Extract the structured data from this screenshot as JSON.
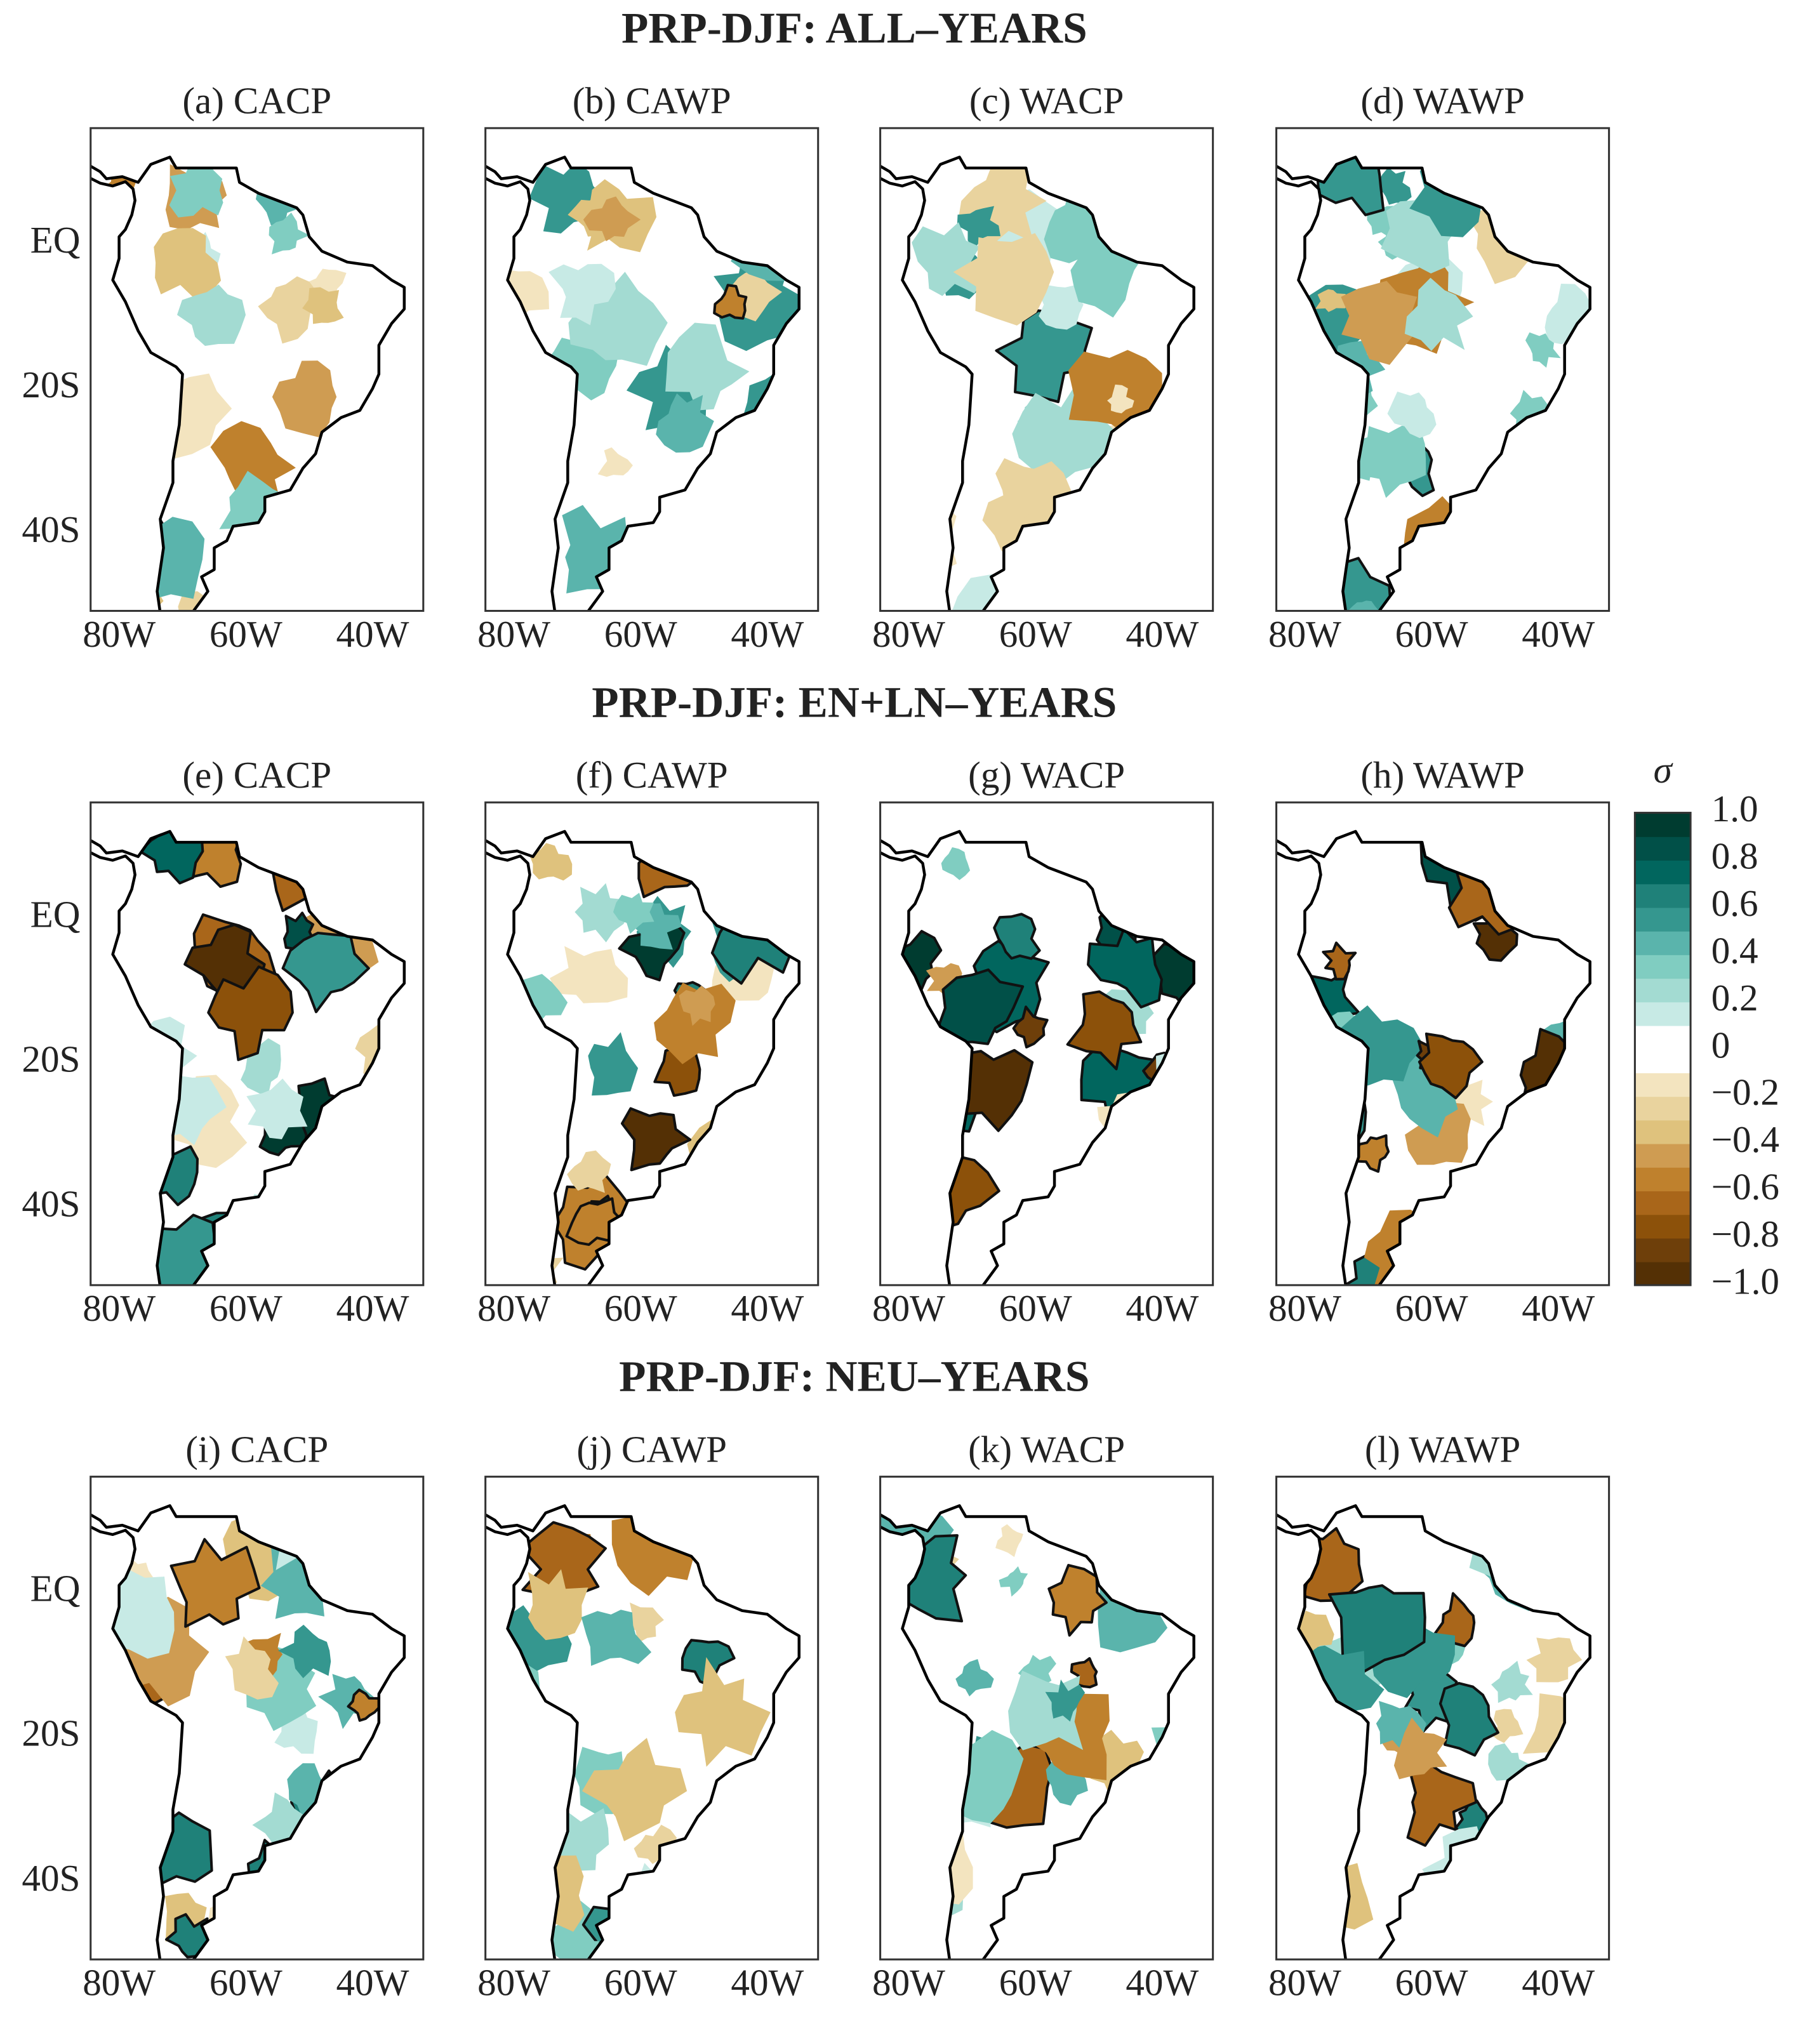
{
  "figure": {
    "rows": [
      {
        "title": "PRP-DJF: ALL–YEARS",
        "panels": [
          {
            "title": "(a) CACP"
          },
          {
            "title": "(b) CAWP"
          },
          {
            "title": "(c) WACP"
          },
          {
            "title": "(d) WAWP"
          }
        ]
      },
      {
        "title": "PRP-DJF: EN+LN–YEARS",
        "panels": [
          {
            "title": "(e) CACP"
          },
          {
            "title": "(f) CAWP"
          },
          {
            "title": "(g) WACP"
          },
          {
            "title": "(h) WAWP"
          }
        ]
      },
      {
        "title": "PRP-DJF: NEU–YEARS",
        "panels": [
          {
            "title": "(i) CACP"
          },
          {
            "title": "(j) CAWP"
          },
          {
            "title": "(k) WACP"
          },
          {
            "title": "(l) WAWP"
          }
        ]
      }
    ],
    "xlim": [
      -84.5,
      -32
    ],
    "ylim": [
      -50.7,
      16
    ],
    "xticks": [
      {
        "value": -80,
        "label": "80W"
      },
      {
        "value": -60,
        "label": "60W"
      },
      {
        "value": -40,
        "label": "40W"
      }
    ],
    "yticks": [
      {
        "value": 0,
        "label": "EQ"
      },
      {
        "value": -20,
        "label": "20S"
      },
      {
        "value": -40,
        "label": "40S"
      }
    ],
    "colorbar": {
      "label": "σ",
      "lim": [
        -1,
        1
      ],
      "ticks": [
        {
          "value": 1,
          "label": "1.0"
        },
        {
          "value": 0.8,
          "label": "0.8"
        },
        {
          "value": 0.6,
          "label": "0.6"
        },
        {
          "value": 0.4,
          "label": "0.4"
        },
        {
          "value": 0.2,
          "label": "0.2"
        },
        0,
        {
          "value": -0.2,
          "label": "−0.2"
        },
        {
          "value": -0.4,
          "label": "−0.4"
        },
        {
          "value": -0.6,
          "label": "−0.6"
        },
        {
          "value": -0.8,
          "label": "−0.8"
        },
        {
          "value": -1,
          "label": "−1.0"
        }
      ],
      "colors": [
        "#543005",
        "#6e3f0a",
        "#8c510a",
        "#a9661a",
        "#bf812d",
        "#cf9c52",
        "#dfc27d",
        "#e9d39e",
        "#f3e4bf",
        "#ffffff",
        "#ffffff",
        "#c7eae5",
        "#a3dbd2",
        "#80cdc1",
        "#5ab4ac",
        "#35978f",
        "#1f8179",
        "#01665e",
        "#015048",
        "#003c30"
      ]
    }
  }
}
